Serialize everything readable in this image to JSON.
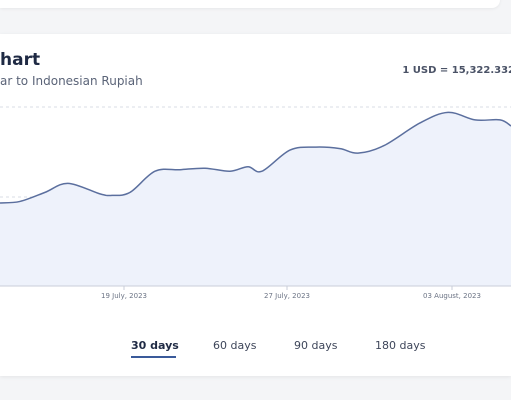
{
  "header": {
    "title": "hart",
    "subtitle": "ar to Indonesian Rupiah",
    "rate_text": "1 USD = 15,322.332"
  },
  "tabs": [
    {
      "label": "30 days",
      "active": true
    },
    {
      "label": "60 days",
      "active": false
    },
    {
      "label": "90 days",
      "active": false
    },
    {
      "label": "180 days",
      "active": false
    }
  ],
  "chart_data": {
    "type": "area",
    "x_tick_labels": [
      "19 July, 2023",
      "27 July, 2023",
      "03 August, 2023"
    ],
    "series": [
      {
        "color": "#5b6f9e",
        "fill": "#eef2fb",
        "relative_values": [
          0.55,
          0.56,
          0.62,
          0.68,
          0.61,
          0.6,
          0.62,
          0.76,
          0.77,
          0.78,
          0.76,
          0.79,
          0.76,
          0.9,
          0.92,
          0.91,
          0.88,
          0.93,
          1.08,
          1.15,
          1.1,
          1.1,
          1.06
        ]
      }
    ],
    "grid": true
  }
}
